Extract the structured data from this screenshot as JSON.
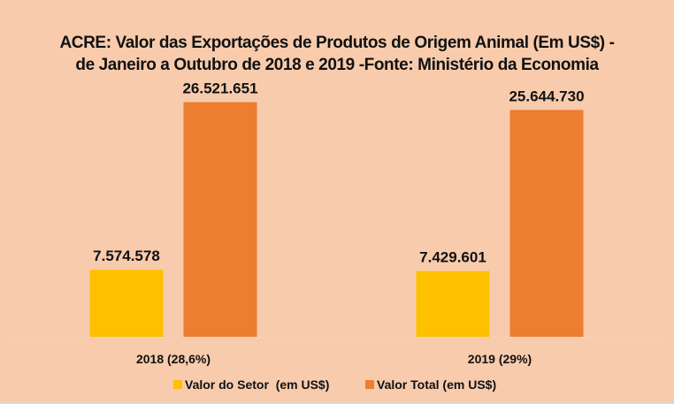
{
  "chart_data": {
    "type": "bar",
    "title": "ACRE: Valor das Exportações de Produtos de Origem Animal (Em US$) - de Janeiro a Outubro de 2018 e 2019 -Fonte: Ministério da Economia",
    "categories": [
      "2018 (28,6%)",
      "2019 (29%)"
    ],
    "series": [
      {
        "name": "Valor do Setor  (em US$)",
        "color": "#ffc000",
        "values": [
          7574578,
          7429601
        ],
        "labels": [
          "7.574.578",
          "7.429.601"
        ]
      },
      {
        "name": "Valor Total (em US$)",
        "color": "#ed7d31",
        "values": [
          26521651,
          25644730
        ],
        "labels": [
          "26.521.651",
          "25.644.730"
        ]
      }
    ],
    "xlabel": "",
    "ylabel": "",
    "ylim": [
      0,
      30000000
    ],
    "grid": false,
    "legend": "bottom"
  },
  "colors": {
    "background": "#f8cbad",
    "axis": "#d9d9d9"
  }
}
